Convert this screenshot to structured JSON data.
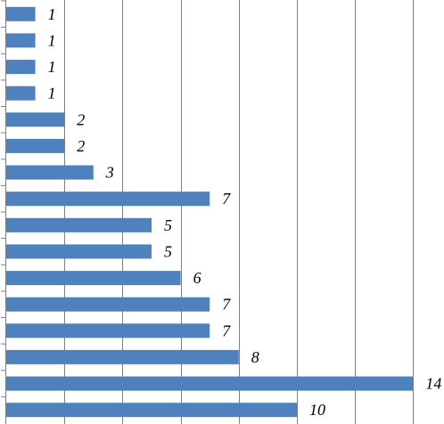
{
  "chart_data": {
    "type": "bar",
    "orientation": "horizontal",
    "categories": [
      "",
      "",
      "",
      "",
      "",
      "",
      "",
      "",
      "",
      "",
      "",
      "",
      "",
      "",
      "",
      ""
    ],
    "values": [
      1,
      1,
      1,
      1,
      2,
      2,
      3,
      7,
      5,
      5,
      6,
      7,
      7,
      8,
      14,
      10
    ],
    "data_labels": [
      "1",
      "1",
      "1",
      "1",
      "2",
      "2",
      "3",
      "7",
      "5",
      "5",
      "6",
      "7",
      "7",
      "8",
      "14",
      "10"
    ],
    "xlim": [
      0,
      14
    ],
    "grid": true,
    "legend": "none",
    "bar_color": "#4f81bd",
    "grid_color": "#7f7f7f"
  }
}
